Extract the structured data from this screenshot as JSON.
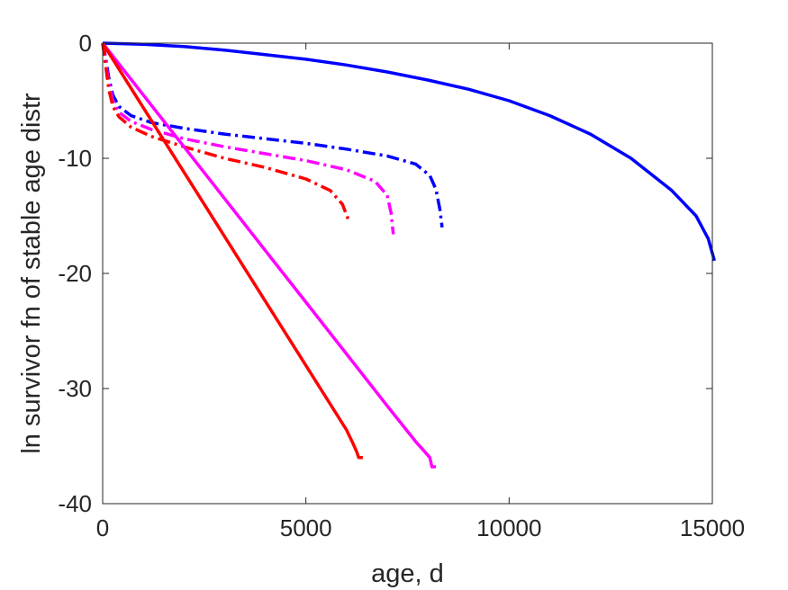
{
  "chart_data": {
    "type": "line",
    "title": "",
    "xlabel": "age, d",
    "ylabel": "ln survivor fn of stable age distr",
    "xlim": [
      0,
      15000
    ],
    "ylim": [
      -40,
      0
    ],
    "xticks": [
      0,
      5000,
      10000,
      15000
    ],
    "xtick_labels": [
      "0",
      "5000",
      "10000",
      "15000"
    ],
    "yticks": [
      0,
      -10,
      -20,
      -30,
      -40
    ],
    "ytick_labels": [
      "0",
      "-10",
      "-20",
      "-30",
      "-40"
    ],
    "grid": false,
    "legend": "none",
    "series": [
      {
        "color": "#0000ff",
        "style": "solid",
        "points": [
          [
            0,
            0
          ],
          [
            1000,
            -0.1
          ],
          [
            2000,
            -0.3
          ],
          [
            3000,
            -0.6
          ],
          [
            4000,
            -1.0
          ],
          [
            5000,
            -1.4
          ],
          [
            6000,
            -1.9
          ],
          [
            7000,
            -2.5
          ],
          [
            8000,
            -3.2
          ],
          [
            9000,
            -4.0
          ],
          [
            10000,
            -5.0
          ],
          [
            11000,
            -6.3
          ],
          [
            12000,
            -7.9
          ],
          [
            13000,
            -10.0
          ],
          [
            14000,
            -12.8
          ],
          [
            14600,
            -15.0
          ],
          [
            14900,
            -17.0
          ],
          [
            15050,
            -18.9
          ]
        ]
      },
      {
        "color": "#0000ff",
        "style": "dashdot",
        "points": [
          [
            0,
            0
          ],
          [
            60,
            -1.0
          ],
          [
            150,
            -3.0
          ],
          [
            250,
            -4.5
          ],
          [
            400,
            -5.5
          ],
          [
            700,
            -6.3
          ],
          [
            1200,
            -6.9
          ],
          [
            2000,
            -7.4
          ],
          [
            3000,
            -7.9
          ],
          [
            4000,
            -8.3
          ],
          [
            5000,
            -8.7
          ],
          [
            6000,
            -9.2
          ],
          [
            7000,
            -9.8
          ],
          [
            7700,
            -10.5
          ],
          [
            8050,
            -11.5
          ],
          [
            8200,
            -12.7
          ],
          [
            8300,
            -14.5
          ],
          [
            8350,
            -16.0
          ]
        ]
      },
      {
        "color": "#ff00ff",
        "style": "dashdot",
        "points": [
          [
            0,
            0
          ],
          [
            60,
            -1.3
          ],
          [
            150,
            -3.5
          ],
          [
            250,
            -5.0
          ],
          [
            400,
            -6.0
          ],
          [
            700,
            -6.8
          ],
          [
            1200,
            -7.5
          ],
          [
            2000,
            -8.3
          ],
          [
            3000,
            -9.0
          ],
          [
            4000,
            -9.6
          ],
          [
            5000,
            -10.2
          ],
          [
            6000,
            -11.0
          ],
          [
            6700,
            -12.0
          ],
          [
            7000,
            -13.2
          ],
          [
            7100,
            -14.8
          ],
          [
            7150,
            -16.6
          ]
        ]
      },
      {
        "color": "#ff0000",
        "style": "dashdot",
        "points": [
          [
            0,
            0
          ],
          [
            60,
            -1.6
          ],
          [
            150,
            -4.0
          ],
          [
            250,
            -5.5
          ],
          [
            400,
            -6.4
          ],
          [
            700,
            -7.3
          ],
          [
            1200,
            -8.1
          ],
          [
            2000,
            -9.0
          ],
          [
            3000,
            -10.0
          ],
          [
            4000,
            -10.8
          ],
          [
            5000,
            -11.8
          ],
          [
            5600,
            -12.8
          ],
          [
            5900,
            -14.0
          ],
          [
            6050,
            -15.4
          ]
        ]
      },
      {
        "color": "#ff00ff",
        "style": "solid",
        "points": [
          [
            0,
            0
          ],
          [
            1000,
            -4.5
          ],
          [
            2000,
            -9.0
          ],
          [
            3000,
            -13.5
          ],
          [
            4000,
            -18.0
          ],
          [
            5000,
            -22.5
          ],
          [
            6000,
            -27.0
          ],
          [
            7000,
            -31.5
          ],
          [
            7700,
            -34.6
          ],
          [
            7900,
            -35.4
          ],
          [
            8050,
            -36.0
          ],
          [
            8100,
            -36.8
          ],
          [
            8200,
            -36.8
          ]
        ]
      },
      {
        "color": "#ff0000",
        "style": "solid",
        "points": [
          [
            0,
            0
          ],
          [
            1000,
            -5.6
          ],
          [
            2000,
            -11.2
          ],
          [
            3000,
            -16.8
          ],
          [
            4000,
            -22.4
          ],
          [
            5000,
            -28.0
          ],
          [
            6000,
            -33.6
          ],
          [
            6150,
            -34.7
          ],
          [
            6250,
            -35.5
          ],
          [
            6300,
            -36.0
          ],
          [
            6400,
            -36.0
          ]
        ]
      }
    ]
  }
}
